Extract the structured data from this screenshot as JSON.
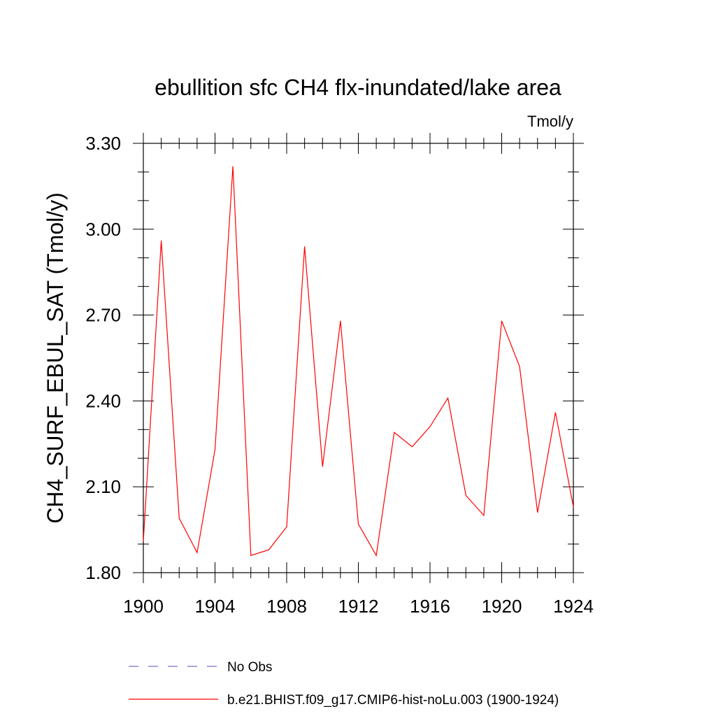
{
  "chart_data": {
    "type": "line",
    "title": "ebullition sfc CH4 flx-inundated/lake area",
    "units_label": "Tmol/y",
    "ylabel": "CH4_SURF_EBUL_SAT  (Tmol/y)",
    "xlabel": "",
    "xlim": [
      1900,
      1924
    ],
    "ylim": [
      1.8,
      3.3
    ],
    "x_ticks": [
      "1900",
      "1904",
      "1908",
      "1912",
      "1916",
      "1920",
      "1924"
    ],
    "y_ticks": [
      "1.80",
      "2.10",
      "2.40",
      "2.70",
      "3.00",
      "3.30"
    ],
    "x": [
      1900,
      1901,
      1902,
      1903,
      1904,
      1905,
      1906,
      1907,
      1908,
      1909,
      1910,
      1911,
      1912,
      1913,
      1914,
      1915,
      1916,
      1917,
      1918,
      1919,
      1920,
      1921,
      1922,
      1923,
      1924
    ],
    "series": [
      {
        "name": "b.e21.BHIST.f09_g17.CMIP6-hist-noLu.003 (1900-1924)",
        "color": "#ff0000",
        "values": [
          1.91,
          2.96,
          1.99,
          1.87,
          2.23,
          3.22,
          1.86,
          1.88,
          1.96,
          2.94,
          2.17,
          2.68,
          1.97,
          1.86,
          2.29,
          2.24,
          2.31,
          2.41,
          2.07,
          2.0,
          2.68,
          2.52,
          2.01,
          2.36,
          2.03
        ]
      }
    ],
    "legend": [
      {
        "label": "No Obs",
        "style": "dashed",
        "color": "#7a72c8"
      },
      {
        "label": "b.e21.BHIST.f09_g17.CMIP6-hist-noLu.003 (1900-1924)",
        "style": "solid",
        "color": "#ff0000"
      }
    ],
    "grid": false
  }
}
